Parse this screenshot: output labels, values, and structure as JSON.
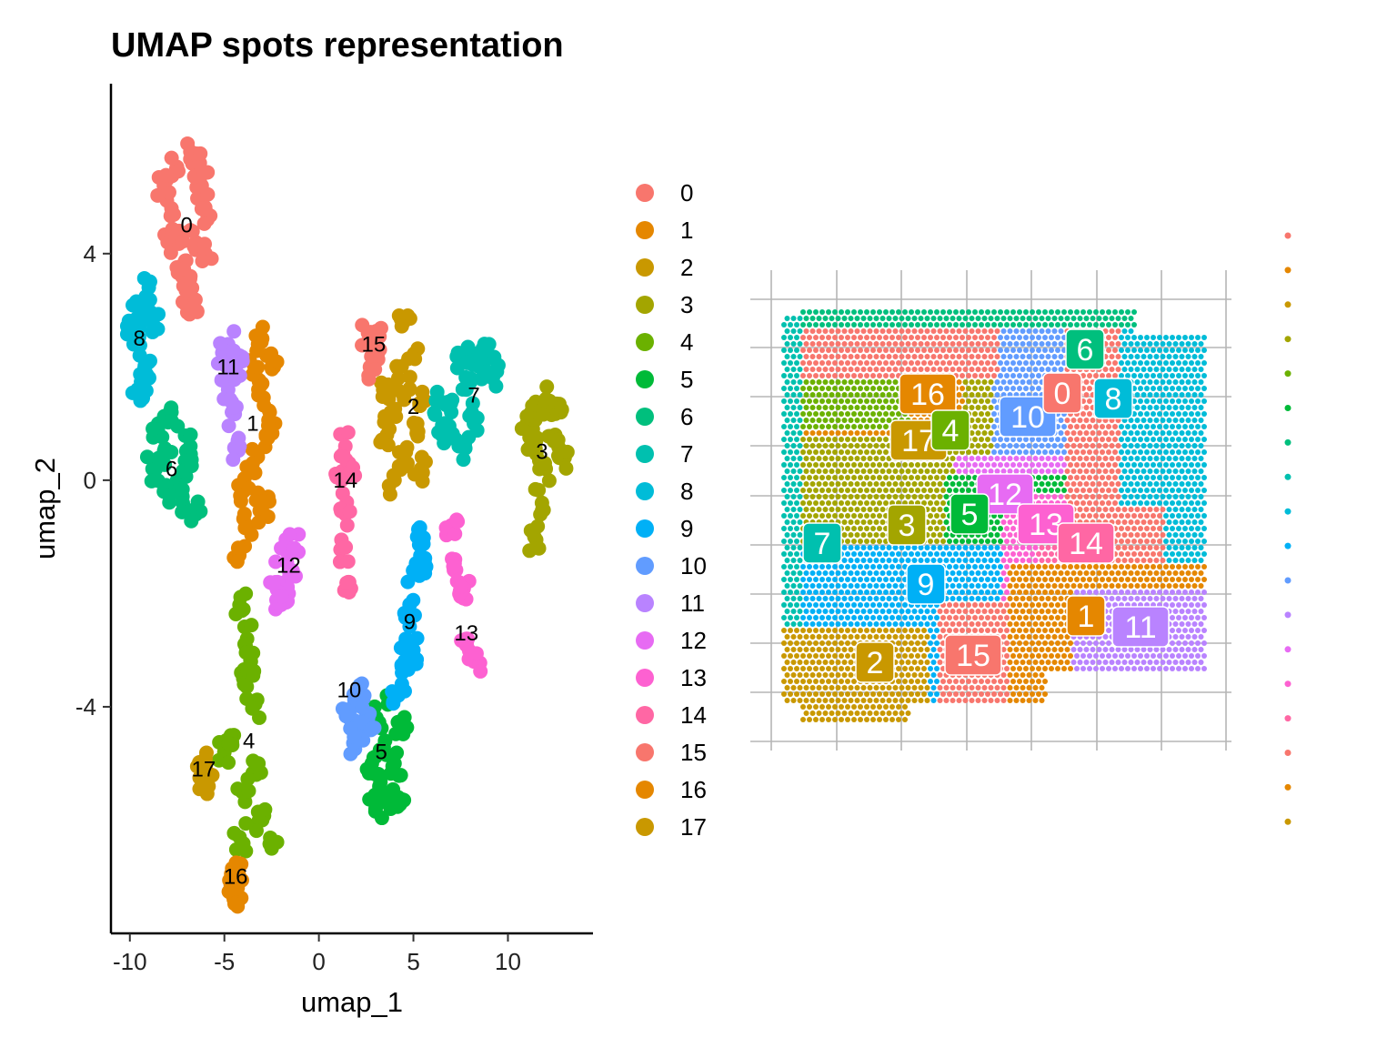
{
  "chart_data": [
    {
      "type": "scatter",
      "title": "UMAP spots representation",
      "xlabel": "umap_1",
      "ylabel": "umap_2",
      "xlim": [
        -11,
        14.5
      ],
      "ylim": [
        -8,
        7
      ],
      "x_ticks": [
        "-10",
        "-5",
        "0",
        "5",
        "10"
      ],
      "x_tick_values": [
        -10,
        -5,
        0,
        5,
        10
      ],
      "y_ticks": [
        "-4",
        "0",
        "4"
      ],
      "y_tick_values": [
        -4,
        0,
        4
      ],
      "grid": false,
      "legend_position": "right",
      "legend": [
        "0",
        "1",
        "2",
        "3",
        "4",
        "5",
        "6",
        "7",
        "8",
        "9",
        "10",
        "11",
        "12",
        "13",
        "14",
        "15",
        "16",
        "17"
      ],
      "colors": [
        "#F8766D",
        "#E58700",
        "#C99800",
        "#A3A500",
        "#6BB100",
        "#00BA38",
        "#00BF7D",
        "#00C0AF",
        "#00BCD8",
        "#00B0F6",
        "#619CFF",
        "#B983FF",
        "#E76BF3",
        "#FD61D1",
        "#FF67A4",
        "#F8766D",
        "#E58700",
        "#C99800"
      ],
      "clusters": [
        {
          "name": "0",
          "label_x": -7.0,
          "label_y": 4.5,
          "points": [
            [
              -7.5,
              5.5
            ],
            [
              -6.8,
              5.8
            ],
            [
              -6.2,
              5.2
            ],
            [
              -7.8,
              4.8
            ],
            [
              -6.5,
              4.2
            ],
            [
              -7.2,
              3.8
            ],
            [
              -6.0,
              4.0
            ],
            [
              -8.0,
              4.2
            ],
            [
              -7.0,
              3.2
            ],
            [
              -6.5,
              3.0
            ],
            [
              -8.2,
              5.2
            ],
            [
              -6.3,
              5.6
            ],
            [
              -7.4,
              4.4
            ],
            [
              -6.8,
              3.6
            ],
            [
              -5.9,
              4.6
            ]
          ]
        },
        {
          "name": "1",
          "label_x": -3.5,
          "label_y": 1.0,
          "points": [
            [
              -3.0,
              2.5
            ],
            [
              -2.5,
              2.0
            ],
            [
              -3.2,
              1.5
            ],
            [
              -2.8,
              0.8
            ],
            [
              -3.5,
              0.3
            ],
            [
              -3.0,
              -0.3
            ],
            [
              -3.8,
              -0.8
            ],
            [
              -4.2,
              -1.2
            ],
            [
              -2.6,
              1.2
            ],
            [
              -3.4,
              2.0
            ],
            [
              -2.9,
              -0.6
            ],
            [
              -4.0,
              -0.2
            ]
          ]
        },
        {
          "name": "2",
          "label_x": 5.0,
          "label_y": 1.3,
          "points": [
            [
              4.5,
              2.8
            ],
            [
              5.0,
              2.2
            ],
            [
              4.2,
              1.8
            ],
            [
              3.8,
              1.2
            ],
            [
              5.2,
              1.0
            ],
            [
              4.6,
              0.5
            ],
            [
              4.0,
              0.0
            ],
            [
              5.4,
              0.2
            ],
            [
              3.6,
              0.8
            ],
            [
              4.8,
              1.6
            ],
            [
              5.6,
              1.4
            ],
            [
              3.4,
              1.6
            ]
          ]
        },
        {
          "name": "3",
          "label_x": 11.8,
          "label_y": 0.5,
          "points": [
            [
              11.5,
              1.2
            ],
            [
              12.5,
              0.8
            ],
            [
              12.0,
              0.2
            ],
            [
              11.2,
              0.6
            ],
            [
              12.8,
              1.2
            ],
            [
              11.8,
              -0.4
            ],
            [
              11.4,
              -1.0
            ],
            [
              12.2,
              1.4
            ],
            [
              13.0,
              0.4
            ],
            [
              11.0,
              1.0
            ]
          ]
        },
        {
          "name": "4",
          "label_x": -3.7,
          "label_y": -4.6,
          "points": [
            [
              -4.2,
              -2.2
            ],
            [
              -3.8,
              -2.8
            ],
            [
              -4.0,
              -3.5
            ],
            [
              -3.5,
              -4.0
            ],
            [
              -4.5,
              -4.5
            ],
            [
              -3.2,
              -5.0
            ],
            [
              -4.0,
              -5.5
            ],
            [
              -3.0,
              -6.0
            ],
            [
              -2.5,
              -6.5
            ],
            [
              -4.2,
              -6.3
            ],
            [
              -5.0,
              -4.8
            ],
            [
              -3.6,
              -3.2
            ]
          ]
        },
        {
          "name": "5",
          "label_x": 3.3,
          "label_y": -4.8,
          "points": [
            [
              3.0,
              -4.2
            ],
            [
              3.5,
              -4.6
            ],
            [
              4.0,
              -5.0
            ],
            [
              3.2,
              -5.4
            ],
            [
              3.8,
              -5.8
            ],
            [
              4.4,
              -4.4
            ],
            [
              2.8,
              -5.0
            ],
            [
              3.6,
              -3.8
            ],
            [
              4.2,
              -5.6
            ],
            [
              3.0,
              -5.8
            ]
          ]
        },
        {
          "name": "6",
          "label_x": -7.8,
          "label_y": 0.2,
          "points": [
            [
              -8.5,
              1.0
            ],
            [
              -8.0,
              0.5
            ],
            [
              -7.5,
              0.0
            ],
            [
              -7.2,
              -0.4
            ],
            [
              -8.2,
              -0.2
            ],
            [
              -6.8,
              0.6
            ],
            [
              -7.8,
              1.2
            ],
            [
              -6.5,
              -0.6
            ],
            [
              -8.8,
              0.2
            ],
            [
              -7.0,
              0.2
            ]
          ]
        },
        {
          "name": "7",
          "label_x": 8.2,
          "label_y": 1.5,
          "points": [
            [
              7.0,
              1.2
            ],
            [
              7.8,
              1.6
            ],
            [
              8.5,
              2.0
            ],
            [
              9.0,
              2.4
            ],
            [
              6.5,
              0.8
            ],
            [
              7.4,
              0.6
            ],
            [
              8.2,
              1.0
            ],
            [
              9.2,
              1.8
            ],
            [
              6.2,
              1.4
            ],
            [
              7.6,
              2.2
            ]
          ]
        },
        {
          "name": "8",
          "label_x": -9.5,
          "label_y": 2.5,
          "points": [
            [
              -9.5,
              3.0
            ],
            [
              -9.8,
              2.4
            ],
            [
              -9.2,
              2.0
            ],
            [
              -9.6,
              1.6
            ],
            [
              -8.8,
              2.8
            ],
            [
              -9.0,
              3.4
            ],
            [
              -9.8,
              2.8
            ],
            [
              -9.0,
              1.8
            ]
          ]
        },
        {
          "name": "9",
          "label_x": 4.8,
          "label_y": -2.5,
          "points": [
            [
              5.2,
              -1.0
            ],
            [
              5.0,
              -1.6
            ],
            [
              4.8,
              -2.2
            ],
            [
              4.6,
              -2.8
            ],
            [
              4.4,
              -3.4
            ],
            [
              5.4,
              -1.4
            ],
            [
              5.0,
              -3.0
            ],
            [
              4.2,
              -3.8
            ]
          ]
        },
        {
          "name": "10",
          "label_x": 1.6,
          "label_y": -3.7,
          "points": [
            [
              1.8,
              -4.0
            ],
            [
              2.2,
              -4.4
            ],
            [
              1.6,
              -4.2
            ],
            [
              2.4,
              -3.8
            ],
            [
              2.0,
              -4.6
            ],
            [
              2.6,
              -4.2
            ]
          ]
        },
        {
          "name": "11",
          "label_x": -4.8,
          "label_y": 2.0,
          "points": [
            [
              -4.8,
              2.4
            ],
            [
              -4.4,
              2.0
            ],
            [
              -4.8,
              1.6
            ],
            [
              -5.0,
              2.2
            ],
            [
              -4.2,
              2.2
            ],
            [
              -4.6,
              1.2
            ],
            [
              -4.2,
              0.6
            ]
          ]
        },
        {
          "name": "12",
          "label_x": -1.6,
          "label_y": -1.5,
          "points": [
            [
              -2.0,
              -1.2
            ],
            [
              -1.5,
              -1.6
            ],
            [
              -1.6,
              -2.0
            ],
            [
              -2.3,
              -1.8
            ],
            [
              -1.3,
              -1.2
            ],
            [
              -2.0,
              -2.2
            ]
          ]
        },
        {
          "name": "13",
          "label_x": 7.8,
          "label_y": -2.7,
          "points": [
            [
              7.0,
              -0.8
            ],
            [
              7.2,
              -1.4
            ],
            [
              7.6,
              -2.0
            ],
            [
              7.8,
              -2.8
            ],
            [
              8.2,
              -3.2
            ],
            [
              7.4,
              -1.8
            ]
          ]
        },
        {
          "name": "14",
          "label_x": 1.4,
          "label_y": 0.0,
          "points": [
            [
              1.4,
              0.6
            ],
            [
              1.2,
              0.0
            ],
            [
              1.4,
              -0.6
            ],
            [
              1.2,
              -1.2
            ],
            [
              1.6,
              -1.8
            ],
            [
              1.6,
              0.3
            ]
          ]
        },
        {
          "name": "15",
          "label_x": 2.9,
          "label_y": 2.4,
          "points": [
            [
              2.6,
              2.6
            ],
            [
              2.9,
              2.3
            ],
            [
              2.7,
              2.0
            ],
            [
              3.0,
              2.5
            ]
          ]
        },
        {
          "name": "16",
          "label_x": -4.4,
          "label_y": -7.0,
          "points": [
            [
              -4.5,
              -6.9
            ],
            [
              -4.3,
              -7.2
            ],
            [
              -4.5,
              -7.4
            ],
            [
              -4.4,
              -7.0
            ]
          ]
        },
        {
          "name": "17",
          "label_x": -6.1,
          "label_y": -5.1,
          "points": [
            [
              -6.0,
              -5.0
            ],
            [
              -6.2,
              -5.3
            ],
            [
              -5.9,
              -5.2
            ],
            [
              -6.1,
              -5.0
            ]
          ]
        }
      ]
    },
    {
      "type": "scatter",
      "title": "",
      "xlabel": "",
      "ylabel": "",
      "grid": true,
      "legend": [
        "0",
        "1",
        "2",
        "3",
        "4",
        "5",
        "6",
        "7",
        "8",
        "9",
        "10",
        "11",
        "12",
        "13",
        "14",
        "15",
        "16",
        "17"
      ],
      "labels": [
        {
          "name": "16",
          "cx": 1020,
          "cy": 433
        },
        {
          "name": "17",
          "cx": 1010,
          "cy": 484
        },
        {
          "name": "4",
          "cx": 1045,
          "cy": 473
        },
        {
          "name": "10",
          "cx": 1130,
          "cy": 458
        },
        {
          "name": "0",
          "cx": 1168,
          "cy": 432
        },
        {
          "name": "6",
          "cx": 1193,
          "cy": 384
        },
        {
          "name": "8",
          "cx": 1224,
          "cy": 438
        },
        {
          "name": "12",
          "cx": 1105,
          "cy": 543
        },
        {
          "name": "5",
          "cx": 1066,
          "cy": 565
        },
        {
          "name": "13",
          "cx": 1150,
          "cy": 576
        },
        {
          "name": "14",
          "cx": 1194,
          "cy": 597
        },
        {
          "name": "7",
          "cx": 904,
          "cy": 597
        },
        {
          "name": "3",
          "cx": 997,
          "cy": 577
        },
        {
          "name": "9",
          "cx": 1018,
          "cy": 642
        },
        {
          "name": "1",
          "cx": 1194,
          "cy": 677
        },
        {
          "name": "11",
          "cx": 1254,
          "cy": 689
        },
        {
          "name": "2",
          "cx": 962,
          "cy": 728
        },
        {
          "name": "15",
          "cx": 1070,
          "cy": 720
        }
      ]
    }
  ]
}
